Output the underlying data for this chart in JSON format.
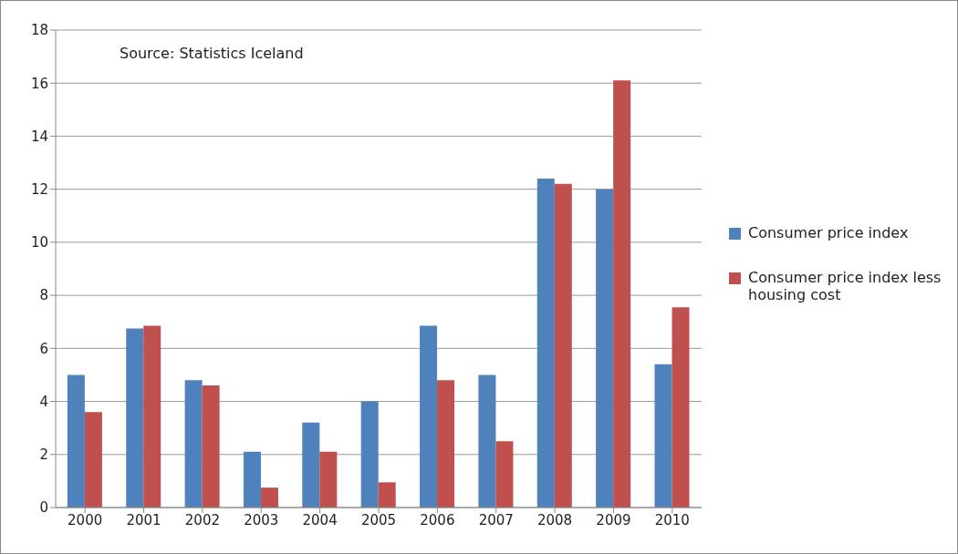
{
  "chart_data": {
    "type": "bar",
    "categories": [
      "2000",
      "2001",
      "2002",
      "2003",
      "2004",
      "2005",
      "2006",
      "2007",
      "2008",
      "2009",
      "2010"
    ],
    "series": [
      {
        "name": "Consumer price index",
        "color": "#4f81bd",
        "values": [
          5.0,
          6.75,
          4.8,
          2.1,
          3.2,
          4.0,
          6.85,
          5.0,
          12.4,
          12.0,
          5.4
        ]
      },
      {
        "name": "Consumer price index less housing cost",
        "color": "#c0504d",
        "values": [
          3.6,
          6.85,
          4.6,
          0.75,
          2.1,
          0.95,
          4.8,
          2.5,
          12.2,
          16.1,
          7.55
        ]
      }
    ],
    "ylim": [
      0,
      18
    ],
    "yticks": [
      0,
      2,
      4,
      6,
      8,
      10,
      12,
      14,
      16,
      18
    ],
    "grid": "y",
    "legend": "right",
    "annotations": [
      "Source: Statistics Iceland"
    ]
  }
}
